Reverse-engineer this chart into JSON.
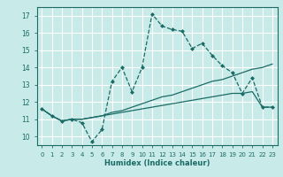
{
  "title": "",
  "xlabel": "Humidex (Indice chaleur)",
  "ylabel": "",
  "background_color": "#c8eae8",
  "grid_color": "#ffffff",
  "line_color": "#1a6b65",
  "xlim": [
    -0.5,
    23.5
  ],
  "ylim": [
    9.5,
    17.5
  ],
  "xticks": [
    0,
    1,
    2,
    3,
    4,
    5,
    6,
    7,
    8,
    9,
    10,
    11,
    12,
    13,
    14,
    15,
    16,
    17,
    18,
    19,
    20,
    21,
    22,
    23
  ],
  "yticks": [
    10,
    11,
    12,
    13,
    14,
    15,
    16,
    17
  ],
  "series": [
    [
      11.6,
      11.2,
      10.9,
      11.0,
      10.8,
      9.7,
      10.4,
      13.2,
      14.0,
      12.6,
      14.0,
      17.1,
      16.4,
      16.2,
      16.1,
      15.1,
      15.4,
      14.7,
      14.1,
      13.7,
      12.5,
      13.4,
      11.7,
      11.7
    ],
    [
      11.6,
      11.2,
      10.9,
      11.0,
      11.0,
      11.1,
      11.2,
      11.4,
      11.5,
      11.7,
      11.9,
      12.1,
      12.3,
      12.4,
      12.6,
      12.8,
      13.0,
      13.2,
      13.3,
      13.5,
      13.7,
      13.9,
      14.0,
      14.2
    ],
    [
      11.6,
      11.2,
      10.9,
      11.0,
      11.0,
      11.1,
      11.2,
      11.3,
      11.4,
      11.5,
      11.6,
      11.7,
      11.8,
      11.9,
      12.0,
      12.1,
      12.2,
      12.3,
      12.4,
      12.5,
      12.5,
      12.6,
      11.7,
      11.7
    ]
  ]
}
